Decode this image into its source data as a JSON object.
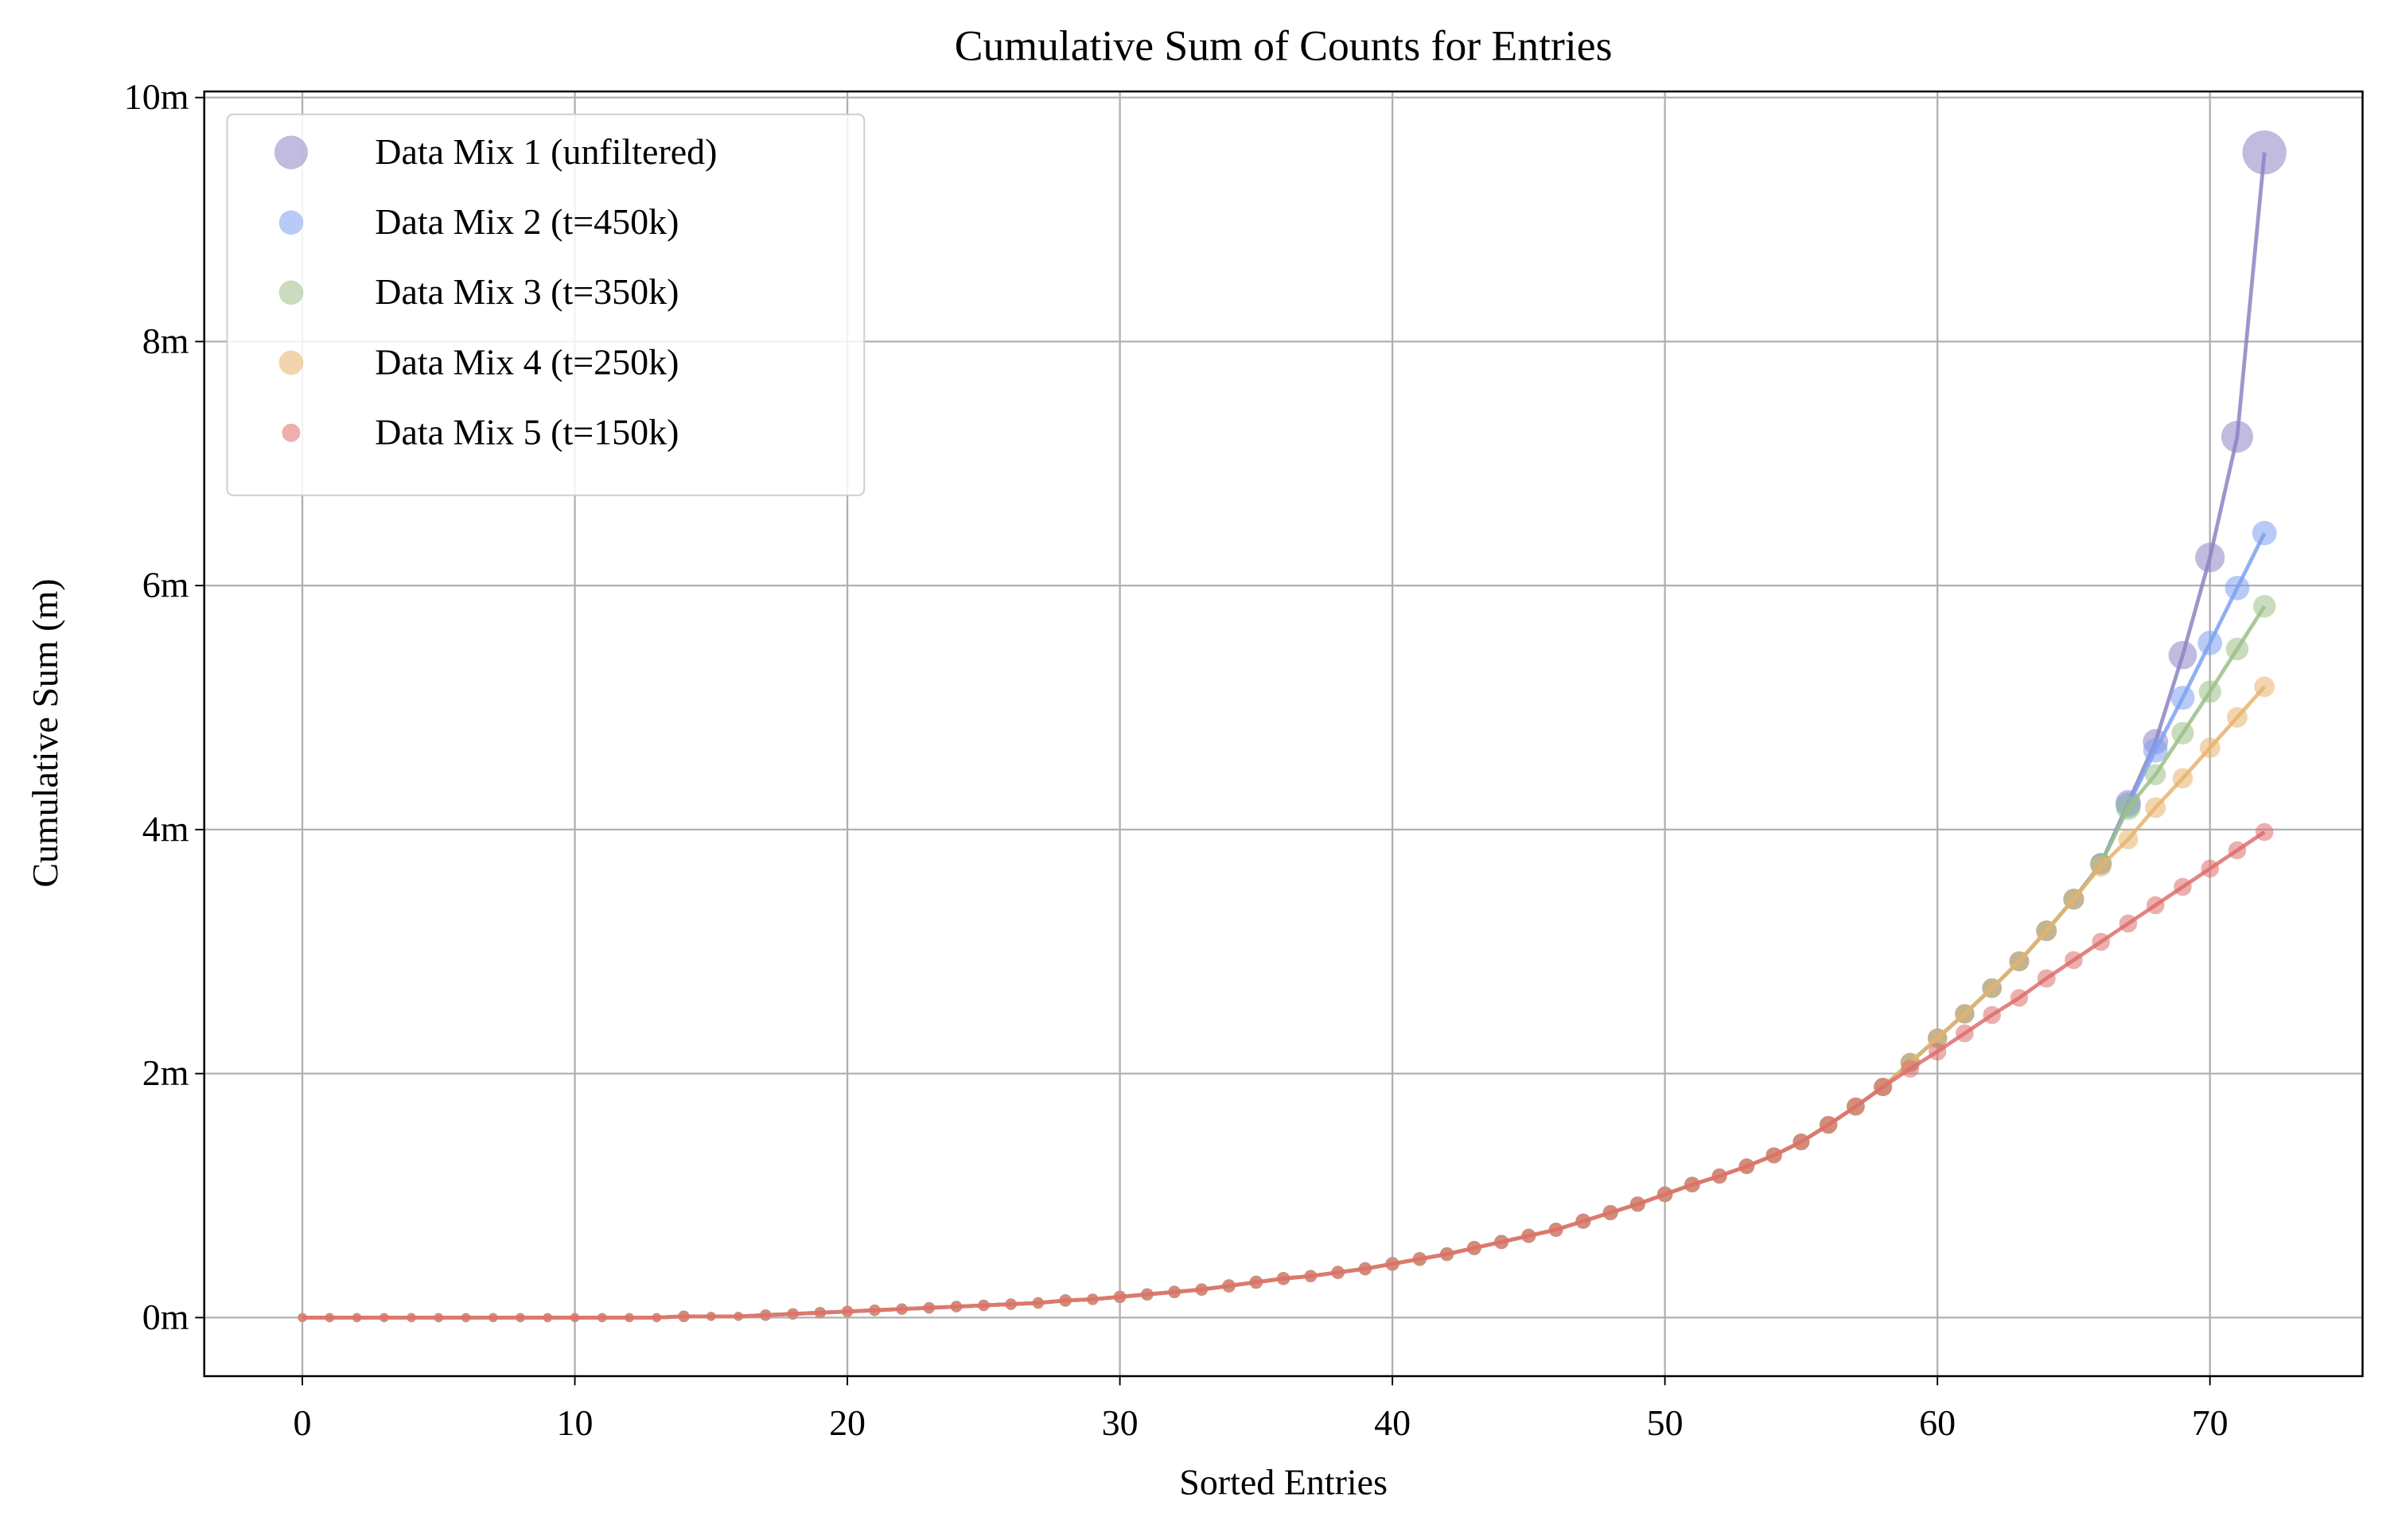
{
  "chart_data": {
    "type": "line",
    "title": "Cumulative Sum of Counts for Entries",
    "x_label": "Sorted Entries",
    "y_label": "Cumulative Sum (m)",
    "x": [
      0,
      1,
      2,
      3,
      4,
      5,
      6,
      7,
      8,
      9,
      10,
      11,
      12,
      13,
      14,
      15,
      16,
      17,
      18,
      19,
      20,
      21,
      22,
      23,
      24,
      25,
      26,
      27,
      28,
      29,
      30,
      31,
      32,
      33,
      34,
      35,
      36,
      37,
      38,
      39,
      40,
      41,
      42,
      43,
      44,
      45,
      46,
      47,
      48,
      49,
      50,
      51,
      52,
      53,
      54,
      55,
      56,
      57,
      58,
      59,
      60,
      61,
      62,
      63,
      64,
      65,
      66,
      67,
      68,
      69,
      70,
      71,
      72
    ],
    "series": [
      {
        "name": "Data Mix 1 (unfiltered)",
        "color": "#8e83c4",
        "values": [
          0,
          0,
          0,
          0,
          0,
          0,
          0,
          0,
          0,
          0,
          0,
          0,
          0,
          0,
          0.01,
          0.01,
          0.01,
          0.02,
          0.03,
          0.04,
          0.05,
          0.06,
          0.07,
          0.08,
          0.09,
          0.1,
          0.11,
          0.12,
          0.14,
          0.15,
          0.17,
          0.19,
          0.21,
          0.23,
          0.26,
          0.29,
          0.32,
          0.34,
          0.37,
          0.4,
          0.44,
          0.48,
          0.52,
          0.57,
          0.62,
          0.67,
          0.72,
          0.79,
          0.86,
          0.93,
          1.01,
          1.09,
          1.16,
          1.24,
          1.33,
          1.44,
          1.58,
          1.73,
          1.89,
          2.09,
          2.29,
          2.49,
          2.7,
          2.92,
          3.17,
          3.43,
          3.72,
          4.22,
          4.72,
          5.43,
          6.23,
          7.22,
          9.55
        ]
      },
      {
        "name": "Data Mix 2 (t=450k)",
        "color": "#7ea1f0",
        "values": [
          0,
          0,
          0,
          0,
          0,
          0,
          0,
          0,
          0,
          0,
          0,
          0,
          0,
          0,
          0.01,
          0.01,
          0.01,
          0.02,
          0.03,
          0.04,
          0.05,
          0.06,
          0.07,
          0.08,
          0.09,
          0.1,
          0.11,
          0.12,
          0.14,
          0.15,
          0.17,
          0.19,
          0.21,
          0.23,
          0.26,
          0.29,
          0.32,
          0.34,
          0.37,
          0.4,
          0.44,
          0.48,
          0.52,
          0.57,
          0.62,
          0.67,
          0.72,
          0.79,
          0.86,
          0.93,
          1.01,
          1.09,
          1.16,
          1.24,
          1.33,
          1.44,
          1.58,
          1.73,
          1.89,
          2.09,
          2.29,
          2.49,
          2.7,
          2.92,
          3.17,
          3.43,
          3.72,
          4.2,
          4.65,
          5.08,
          5.53,
          5.98,
          6.43
        ]
      },
      {
        "name": "Data Mix 3 (t=350k)",
        "color": "#9cbf86",
        "values": [
          0,
          0,
          0,
          0,
          0,
          0,
          0,
          0,
          0,
          0,
          0,
          0,
          0,
          0,
          0.01,
          0.01,
          0.01,
          0.02,
          0.03,
          0.04,
          0.05,
          0.06,
          0.07,
          0.08,
          0.09,
          0.1,
          0.11,
          0.12,
          0.14,
          0.15,
          0.17,
          0.19,
          0.21,
          0.23,
          0.26,
          0.29,
          0.32,
          0.34,
          0.37,
          0.4,
          0.44,
          0.48,
          0.52,
          0.57,
          0.62,
          0.67,
          0.72,
          0.79,
          0.86,
          0.93,
          1.01,
          1.09,
          1.16,
          1.24,
          1.33,
          1.44,
          1.58,
          1.73,
          1.89,
          2.09,
          2.29,
          2.49,
          2.7,
          2.92,
          3.17,
          3.43,
          3.72,
          4.18,
          4.45,
          4.79,
          5.13,
          5.48,
          5.83
        ]
      },
      {
        "name": "Data Mix 4 (t=250k)",
        "color": "#e8b36e",
        "values": [
          0,
          0,
          0,
          0,
          0,
          0,
          0,
          0,
          0,
          0,
          0,
          0,
          0,
          0,
          0.01,
          0.01,
          0.01,
          0.02,
          0.03,
          0.04,
          0.05,
          0.06,
          0.07,
          0.08,
          0.09,
          0.1,
          0.11,
          0.12,
          0.14,
          0.15,
          0.17,
          0.19,
          0.21,
          0.23,
          0.26,
          0.29,
          0.32,
          0.34,
          0.37,
          0.4,
          0.44,
          0.48,
          0.52,
          0.57,
          0.62,
          0.67,
          0.72,
          0.79,
          0.86,
          0.93,
          1.01,
          1.09,
          1.16,
          1.24,
          1.33,
          1.44,
          1.58,
          1.73,
          1.89,
          2.09,
          2.29,
          2.49,
          2.7,
          2.92,
          3.17,
          3.43,
          3.7,
          3.92,
          4.18,
          4.42,
          4.67,
          4.92,
          5.17
        ]
      },
      {
        "name": "Data Mix 5 (t=150k)",
        "color": "#dd6e6b",
        "values": [
          0,
          0,
          0,
          0,
          0,
          0,
          0,
          0,
          0,
          0,
          0,
          0,
          0,
          0,
          0.01,
          0.01,
          0.01,
          0.02,
          0.03,
          0.04,
          0.05,
          0.06,
          0.07,
          0.08,
          0.09,
          0.1,
          0.11,
          0.12,
          0.14,
          0.15,
          0.17,
          0.19,
          0.21,
          0.23,
          0.26,
          0.29,
          0.32,
          0.34,
          0.37,
          0.4,
          0.44,
          0.48,
          0.52,
          0.57,
          0.62,
          0.67,
          0.72,
          0.79,
          0.86,
          0.93,
          1.01,
          1.09,
          1.16,
          1.24,
          1.33,
          1.44,
          1.58,
          1.73,
          1.89,
          2.04,
          2.18,
          2.33,
          2.48,
          2.62,
          2.78,
          2.93,
          3.08,
          3.23,
          3.38,
          3.53,
          3.68,
          3.83,
          3.98
        ]
      }
    ],
    "xlim": [
      -3.6,
      75.6
    ],
    "xticks": [
      0,
      10,
      20,
      30,
      40,
      50,
      60,
      70
    ],
    "ylim": [
      -0.48,
      10.05
    ],
    "yticks": [
      {
        "value": 0,
        "label": "0m"
      },
      {
        "value": 2,
        "label": "2m"
      },
      {
        "value": 4,
        "label": "4m"
      },
      {
        "value": 6,
        "label": "6m"
      },
      {
        "value": 8,
        "label": "8m"
      },
      {
        "value": 10,
        "label": "10m"
      }
    ],
    "grid": true,
    "legend": "upper left"
  }
}
